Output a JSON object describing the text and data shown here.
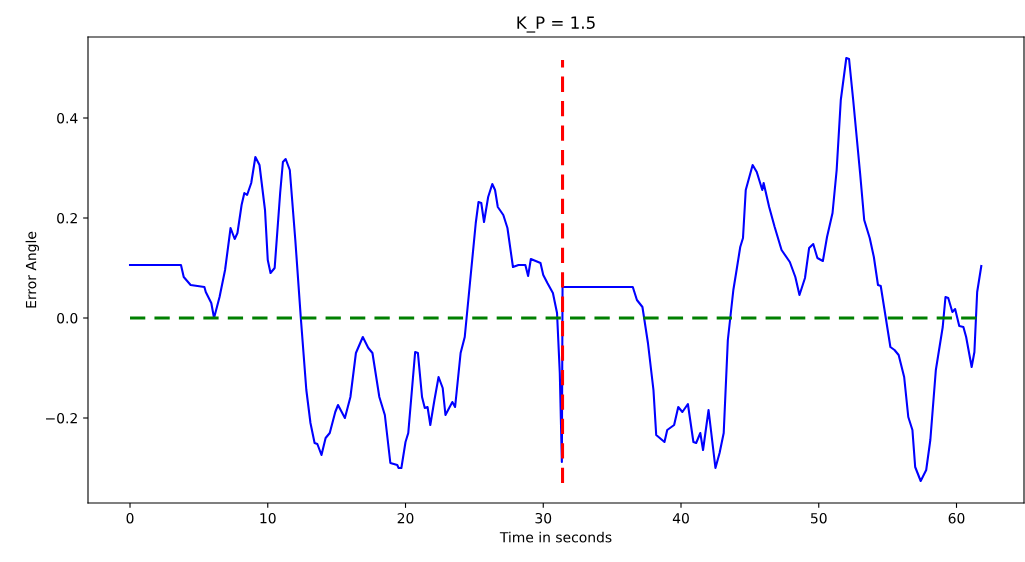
{
  "chart_data": {
    "type": "line",
    "title": "K_P = 1.5",
    "xlabel": "Time in seconds",
    "ylabel": "Error Angle",
    "xlim": [
      -3.05,
      64.9
    ],
    "ylim": [
      -0.37,
      0.562
    ],
    "xticks": [
      0,
      10,
      20,
      30,
      40,
      50,
      60
    ],
    "yticks": [
      {
        "value": -0.2,
        "label": "−0.2"
      },
      {
        "value": 0,
        "label": "0.0"
      },
      0.2,
      0.4
    ],
    "grid": false,
    "legend": false,
    "series": [
      {
        "color": "#0000ff",
        "line_style": "solid",
        "x": [
          0,
          3.7,
          3.9,
          4.4,
          5.4,
          5.5,
          5.9,
          6.1,
          6.5,
          6.9,
          7.3,
          7.6,
          7.8,
          8.1,
          8.3,
          8.5,
          8.8,
          9.1,
          9.4,
          9.8,
          10.0,
          10.2,
          10.5,
          10.9,
          11.1,
          11.3,
          11.6,
          12.0,
          12.4,
          12.8,
          13.1,
          13.4,
          13.6,
          13.9,
          14.2,
          14.5,
          14.9,
          15.1,
          15.6,
          16.0,
          16.4,
          16.9,
          17.3,
          17.6,
          18.1,
          18.5,
          18.9,
          19.4,
          19.5,
          19.7,
          20.0,
          20.2,
          20.7,
          20.9,
          21.2,
          21.4,
          21.6,
          21.8,
          22.1,
          22.4,
          22.7,
          22.9,
          23.4,
          23.6,
          24.0,
          24.3,
          24.7,
          25.1,
          25.3,
          25.5,
          25.7,
          26.0,
          26.3,
          26.5,
          26.7,
          27.1,
          27.4,
          27.8,
          28.2,
          28.7,
          28.9,
          29.1,
          29.8,
          30.0,
          30.3,
          30.7,
          31.0,
          31.2,
          31.35,
          31.4,
          36.5,
          36.8,
          37.2,
          37.6,
          38.0,
          38.2,
          38.8,
          39.0,
          39.5,
          39.8,
          40.1,
          40.5,
          40.9,
          41.1,
          41.4,
          41.6,
          42.0,
          42.5,
          42.8,
          43.1,
          43.4,
          43.8,
          44.0,
          44.3,
          44.5,
          44.7,
          45.2,
          45.5,
          45.9,
          46.0,
          46.4,
          46.8,
          47.3,
          47.9,
          48.3,
          48.6,
          49.0,
          49.3,
          49.6,
          49.9,
          50.3,
          50.6,
          51.0,
          51.3,
          51.6,
          52.0,
          52.2,
          52.5,
          53.0,
          53.3,
          53.7,
          54.0,
          54.3,
          54.5,
          55.2,
          55.5,
          55.8,
          56.2,
          56.5,
          56.8,
          57.0,
          57.4,
          57.8,
          58.1,
          58.5,
          59.0,
          59.2,
          59.4,
          59.7,
          59.9,
          60.2,
          60.5,
          60.7,
          61.1,
          61.3,
          61.5,
          61.8
        ],
        "values": [
          0.106,
          0.106,
          0.082,
          0.066,
          0.062,
          0.052,
          0.03,
          0.0,
          0.042,
          0.096,
          0.18,
          0.158,
          0.17,
          0.226,
          0.25,
          0.246,
          0.27,
          0.322,
          0.306,
          0.216,
          0.116,
          0.09,
          0.1,
          0.25,
          0.312,
          0.318,
          0.296,
          0.156,
          0.0,
          -0.144,
          -0.21,
          -0.25,
          -0.252,
          -0.274,
          -0.24,
          -0.23,
          -0.188,
          -0.174,
          -0.2,
          -0.158,
          -0.07,
          -0.038,
          -0.06,
          -0.07,
          -0.158,
          -0.194,
          -0.29,
          -0.294,
          -0.3,
          -0.3,
          -0.248,
          -0.23,
          -0.068,
          -0.07,
          -0.158,
          -0.18,
          -0.178,
          -0.214,
          -0.164,
          -0.118,
          -0.14,
          -0.194,
          -0.168,
          -0.178,
          -0.07,
          -0.038,
          0.076,
          0.19,
          0.232,
          0.23,
          0.192,
          0.242,
          0.268,
          0.256,
          0.222,
          0.206,
          0.18,
          0.102,
          0.106,
          0.106,
          0.084,
          0.118,
          0.11,
          0.086,
          0.07,
          0.05,
          0.01,
          -0.11,
          -0.288,
          0.062,
          0.062,
          0.036,
          0.022,
          -0.05,
          -0.144,
          -0.234,
          -0.248,
          -0.224,
          -0.214,
          -0.178,
          -0.188,
          -0.172,
          -0.248,
          -0.25,
          -0.23,
          -0.264,
          -0.184,
          -0.3,
          -0.27,
          -0.23,
          -0.044,
          0.056,
          0.09,
          0.142,
          0.16,
          0.256,
          0.306,
          0.292,
          0.256,
          0.27,
          0.222,
          0.182,
          0.136,
          0.112,
          0.082,
          0.046,
          0.08,
          0.14,
          0.148,
          0.12,
          0.114,
          0.162,
          0.21,
          0.296,
          0.436,
          0.52,
          0.518,
          0.436,
          0.29,
          0.196,
          0.16,
          0.122,
          0.066,
          0.064,
          -0.058,
          -0.064,
          -0.074,
          -0.118,
          -0.198,
          -0.224,
          -0.298,
          -0.326,
          -0.304,
          -0.244,
          -0.104,
          -0.018,
          0.042,
          0.04,
          0.012,
          0.018,
          -0.016,
          -0.018,
          -0.038,
          -0.098,
          -0.068,
          0.052,
          0.104
        ]
      },
      {
        "color": "#ff0000",
        "line_style": "dashed",
        "x": [
          31.4,
          31.4
        ],
        "values": [
          -0.33,
          0.516
        ]
      },
      {
        "color": "#008000",
        "line_style": "dashed",
        "x": [
          0,
          61.5
        ],
        "values": [
          0,
          0
        ]
      }
    ]
  }
}
